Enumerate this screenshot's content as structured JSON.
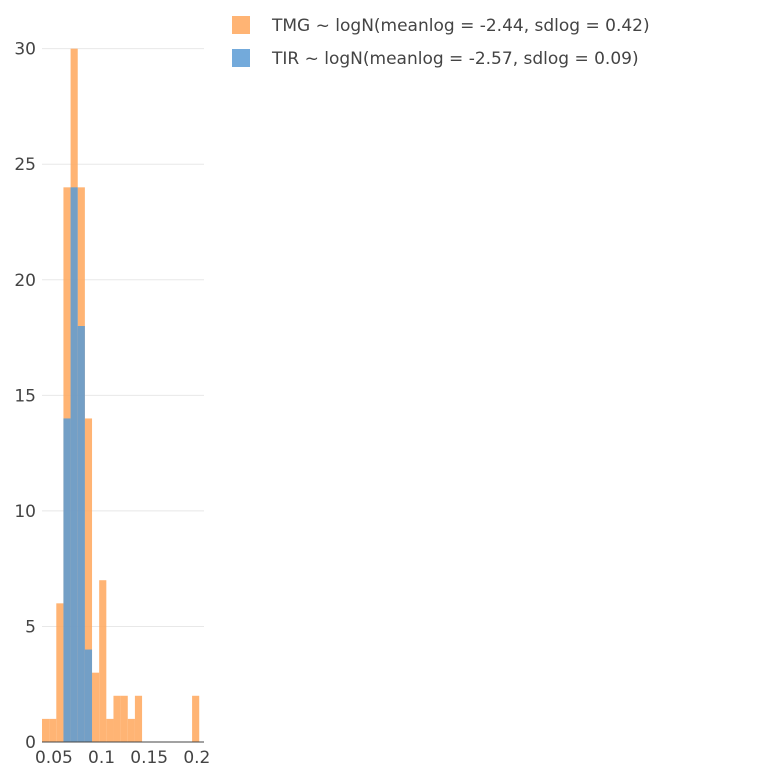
{
  "chart_data": {
    "type": "bar",
    "title": "",
    "xlabel": "",
    "ylabel": "",
    "barmode": "overlay",
    "bin_width": 0.0075,
    "xlim": [
      0.0375,
      0.2075
    ],
    "ylim": [
      0,
      31.5
    ],
    "xticks": [
      0.05,
      0.1,
      0.15,
      0.2
    ],
    "xtick_labels": [
      "0.05",
      "0.1",
      "0.15",
      "0.2"
    ],
    "yticks": [
      0,
      5,
      10,
      15,
      20,
      25,
      30
    ],
    "ytick_labels": [
      "0",
      "5",
      "10",
      "15",
      "20",
      "25",
      "30"
    ],
    "grid": true,
    "legend_position": "top-right",
    "series": [
      {
        "name": "TMG ~ logN(meanlog = -2.44, sdlog = 0.42)",
        "color": "#FFA75C",
        "opacity": 0.85,
        "bins": [
          {
            "x0": 0.0375,
            "x1": 0.045,
            "count": 1
          },
          {
            "x0": 0.045,
            "x1": 0.0525,
            "count": 1
          },
          {
            "x0": 0.0525,
            "x1": 0.06,
            "count": 6
          },
          {
            "x0": 0.06,
            "x1": 0.0675,
            "count": 24
          },
          {
            "x0": 0.0675,
            "x1": 0.075,
            "count": 30
          },
          {
            "x0": 0.075,
            "x1": 0.0825,
            "count": 24
          },
          {
            "x0": 0.0825,
            "x1": 0.09,
            "count": 14
          },
          {
            "x0": 0.09,
            "x1": 0.0975,
            "count": 3
          },
          {
            "x0": 0.0975,
            "x1": 0.105,
            "count": 7
          },
          {
            "x0": 0.105,
            "x1": 0.1125,
            "count": 1
          },
          {
            "x0": 0.1125,
            "x1": 0.12,
            "count": 2
          },
          {
            "x0": 0.12,
            "x1": 0.1275,
            "count": 2
          },
          {
            "x0": 0.1275,
            "x1": 0.135,
            "count": 1
          },
          {
            "x0": 0.135,
            "x1": 0.1425,
            "count": 2
          },
          {
            "x0": 0.1425,
            "x1": 0.15,
            "count": 0
          },
          {
            "x0": 0.15,
            "x1": 0.1575,
            "count": 0
          },
          {
            "x0": 0.1575,
            "x1": 0.165,
            "count": 0
          },
          {
            "x0": 0.165,
            "x1": 0.1725,
            "count": 0
          },
          {
            "x0": 0.1725,
            "x1": 0.18,
            "count": 0
          },
          {
            "x0": 0.18,
            "x1": 0.1875,
            "count": 0
          },
          {
            "x0": 0.1875,
            "x1": 0.195,
            "count": 0
          },
          {
            "x0": 0.195,
            "x1": 0.2025,
            "count": 2
          }
        ]
      },
      {
        "name": "TIR ~ logN(meanlog = -2.57, sdlog = 0.09)",
        "color": "#5B9BD5",
        "opacity": 0.85,
        "bins": [
          {
            "x0": 0.06,
            "x1": 0.0675,
            "count": 14
          },
          {
            "x0": 0.0675,
            "x1": 0.075,
            "count": 24
          },
          {
            "x0": 0.075,
            "x1": 0.0825,
            "count": 18
          },
          {
            "x0": 0.0825,
            "x1": 0.09,
            "count": 4
          }
        ]
      }
    ]
  }
}
